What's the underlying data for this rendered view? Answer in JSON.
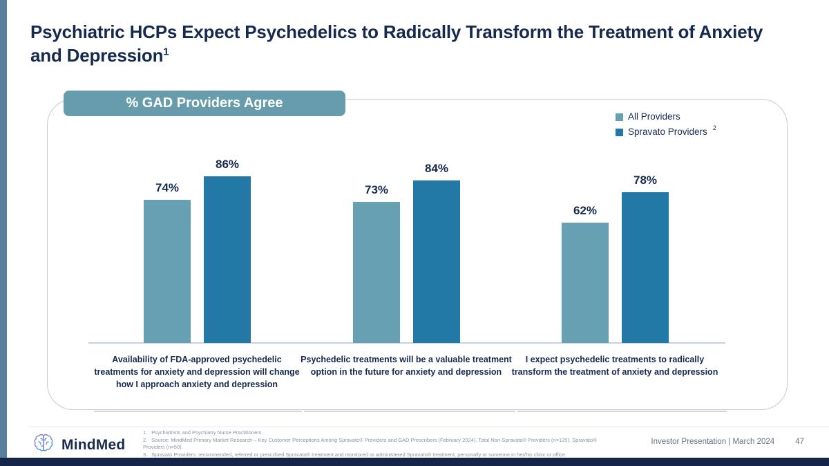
{
  "title": {
    "text": "Psychiatric HCPs Expect Psychedelics to Radically Transform the Treatment of Anxiety and Depression",
    "superscript": "1"
  },
  "chart_data": {
    "type": "bar",
    "title": "% GAD Providers Agree",
    "categories": [
      "Availability of FDA-approved psychedelic treatments for anxiety and depression will change how I approach anxiety and depression",
      "Psychedelic treatments will be a valuable treatment option in the future for anxiety and depression",
      "I expect psychedelic treatments to radically transform the treatment of anxiety and depression"
    ],
    "series": [
      {
        "name": "All Providers",
        "legend_superscript": "",
        "color": "#68A0B3",
        "values": [
          74,
          73,
          62
        ]
      },
      {
        "name": "Spravato Providers",
        "legend_superscript": "2",
        "color": "#2379A6",
        "values": [
          86,
          84,
          78
        ]
      }
    ],
    "data_labels": [
      [
        "74%",
        "73%",
        "62%"
      ],
      [
        "86%",
        "84%",
        "78%"
      ]
    ],
    "ylim": [
      0,
      100
    ],
    "grid": false,
    "legend_position": "top-right",
    "data_label_format": "percent",
    "baseline_axis": true
  },
  "footer": {
    "logo_text": "MindMed",
    "footnotes": [
      {
        "num": "1.",
        "text": "Psychiatrists and Psychiatry Nurse Practitioners"
      },
      {
        "num": "2.",
        "text": "Source: MindMed Primary Market Research – Key Customer Perceptions Among Spravato® Providers and GAD Prescribers (February 2024). Total Non-Spravato® Providers (n=125), Spravato® Providers (n=50)."
      },
      {
        "num": "3.",
        "text": "Spravato Providers: recommended, referred or prescribed Spravato® treatment and monitored or administered Spravato® treatment, personally or someone in her/his clinic or office."
      }
    ],
    "presentation_label": "Investor Presentation | March 2024",
    "page_number": "47"
  },
  "colors": {
    "accent_bar": "#57809F",
    "title_text": "#16294E",
    "pill_background": "#679CAD",
    "series_light": "#68A0B3",
    "series_dark": "#2379A6",
    "bottom_bar": "#15254A"
  }
}
